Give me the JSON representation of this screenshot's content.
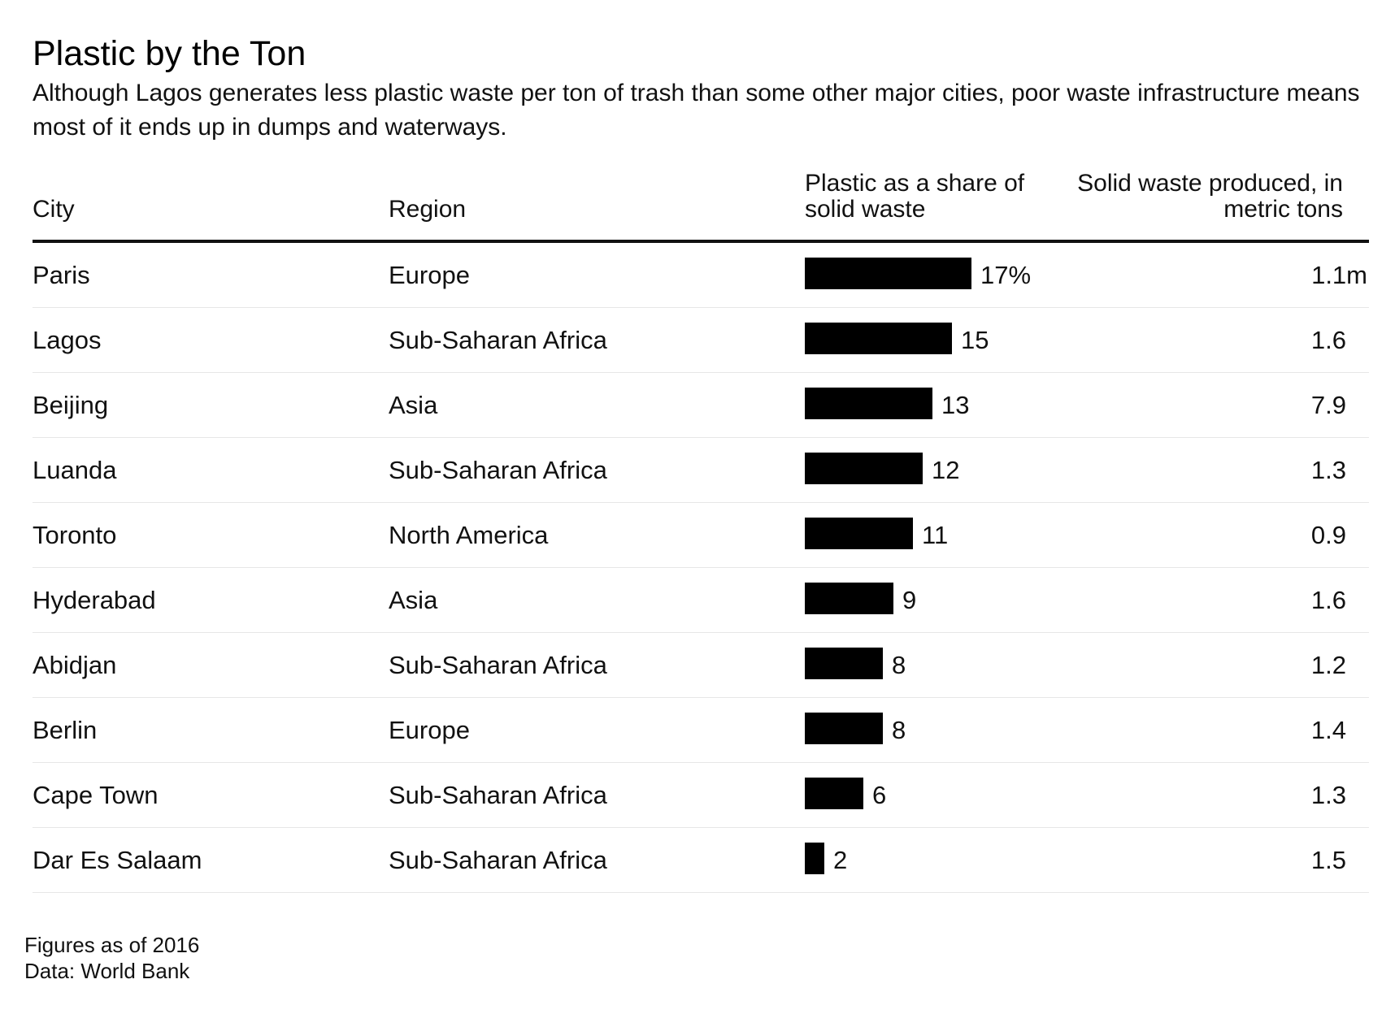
{
  "title": "Plastic by the Ton",
  "subtitle": "Although Lagos generates less plastic waste per ton of trash than some other major cities, poor waste infrastructure means most of it ends up in dumps and waterways.",
  "headers": {
    "city": "City",
    "region": "Region",
    "share": "Plastic as a share of solid waste",
    "waste": "Solid waste produced, in metric tons"
  },
  "footnotes": {
    "note": "Figures as of 2016",
    "source": "Data: World Bank"
  },
  "colors": {
    "bar": "#000000",
    "rule": "#111111",
    "row_divider": "#e6e6e6"
  },
  "chart_data": {
    "type": "table",
    "title": "Plastic by the Ton",
    "columns": [
      "City",
      "Region",
      "Plastic as a share of solid waste",
      "Solid waste produced, in metric tons"
    ],
    "bar_max": 17,
    "rows": [
      {
        "city": "Paris",
        "region": "Europe",
        "share": 17,
        "share_label": "17%",
        "waste": "1.1m"
      },
      {
        "city": "Lagos",
        "region": "Sub-Saharan Africa",
        "share": 15,
        "share_label": "15",
        "waste": "1.6"
      },
      {
        "city": "Beijing",
        "region": "Asia",
        "share": 13,
        "share_label": "13",
        "waste": "7.9"
      },
      {
        "city": "Luanda",
        "region": "Sub-Saharan Africa",
        "share": 12,
        "share_label": "12",
        "waste": "1.3"
      },
      {
        "city": "Toronto",
        "region": "North America",
        "share": 11,
        "share_label": "11",
        "waste": "0.9"
      },
      {
        "city": "Hyderabad",
        "region": "Asia",
        "share": 9,
        "share_label": "9",
        "waste": "1.6"
      },
      {
        "city": "Abidjan",
        "region": "Sub-Saharan Africa",
        "share": 8,
        "share_label": "8",
        "waste": "1.2"
      },
      {
        "city": "Berlin",
        "region": "Europe",
        "share": 8,
        "share_label": "8",
        "waste": "1.4"
      },
      {
        "city": "Cape Town",
        "region": "Sub-Saharan Africa",
        "share": 6,
        "share_label": "6",
        "waste": "1.3"
      },
      {
        "city": "Dar Es Salaam",
        "region": "Sub-Saharan Africa",
        "share": 2,
        "share_label": "2",
        "waste": "1.5"
      }
    ]
  }
}
